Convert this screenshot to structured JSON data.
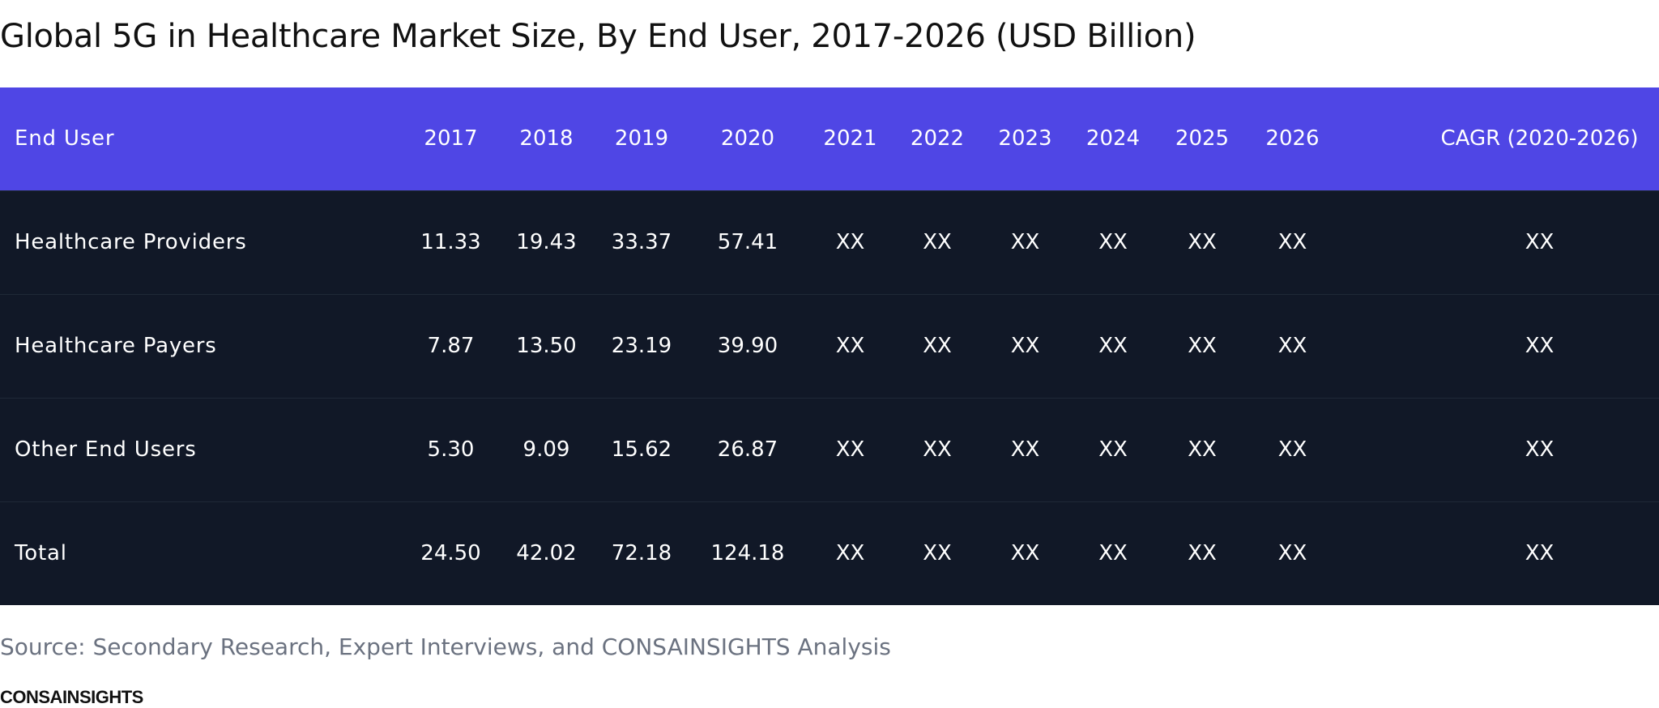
{
  "title": "Global 5G in Healthcare Market Size, By End User, 2017-2026 (USD Billion)",
  "colors": {
    "header_bg": "#4f46e5",
    "body_bg": "#111827",
    "text_light": "#ffffff",
    "source_text": "#6b7280"
  },
  "chart_data": {
    "type": "table",
    "title": "Global 5G in Healthcare Market Size, By End User, 2017-2026 (USD Billion)",
    "columns": [
      "End User",
      "2017",
      "2018",
      "2019",
      "2020",
      "2021",
      "2022",
      "2023",
      "2024",
      "2025",
      "2026",
      "CAGR (2020-2026)"
    ],
    "rows": [
      [
        "Healthcare Providers",
        "11.33",
        "19.43",
        "33.37",
        "57.41",
        "XX",
        "XX",
        "XX",
        "XX",
        "XX",
        "XX",
        "XX"
      ],
      [
        "Healthcare Payers",
        "7.87",
        "13.50",
        "23.19",
        "39.90",
        "XX",
        "XX",
        "XX",
        "XX",
        "XX",
        "XX",
        "XX"
      ],
      [
        "Other End Users",
        "5.30",
        "9.09",
        "15.62",
        "26.87",
        "XX",
        "XX",
        "XX",
        "XX",
        "XX",
        "XX",
        "XX"
      ],
      [
        "Total",
        "24.50",
        "42.02",
        "72.18",
        "124.18",
        "XX",
        "XX",
        "XX",
        "XX",
        "XX",
        "XX",
        "XX"
      ]
    ]
  },
  "source": "Source: Secondary Research, Expert Interviews, and CONSAINSIGHTS Analysis",
  "brand": "CONSAINSIGHTS"
}
